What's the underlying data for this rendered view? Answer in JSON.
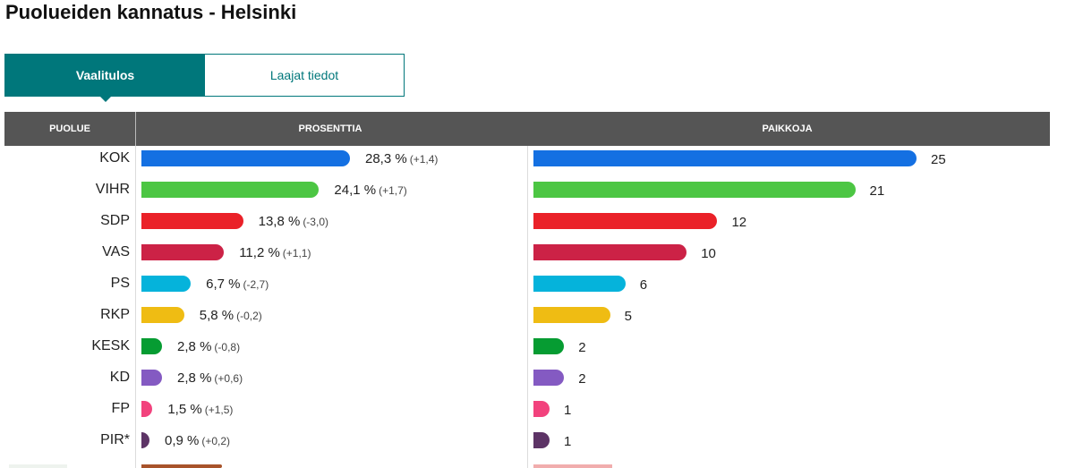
{
  "page_title": "Puolueiden kannatus - Helsinki",
  "tabs": {
    "active": "Vaalitulos",
    "inactive": "Laajat tiedot"
  },
  "table_header": {
    "party": "PUOLUE",
    "percent": "PROSENTTIA",
    "seats": "PAIKKOJA"
  },
  "chart_data": {
    "type": "bar",
    "orientation": "horizontal",
    "categories": [
      "KOK",
      "VIHR",
      "SDP",
      "VAS",
      "PS",
      "RKP",
      "KESK",
      "KD",
      "FP",
      "PIR*"
    ],
    "series": [
      {
        "name": "PROSENTTIA",
        "values": [
          28.3,
          24.1,
          13.8,
          11.2,
          6.7,
          5.8,
          2.8,
          2.8,
          1.5,
          0.9
        ],
        "value_labels": [
          "28,3 %",
          "24,1 %",
          "13,8 %",
          "11,2 %",
          "6,7 %",
          "5,8 %",
          "2,8 %",
          "2,8 %",
          "1,5 %",
          "0,9 %"
        ],
        "change_labels": [
          "(+1,4)",
          "(+1,7)",
          "(-3,0)",
          "(+1,1)",
          "(-2,7)",
          "(-0,2)",
          "(-0,8)",
          "(+0,6)",
          "(+1,5)",
          "(+0,2)"
        ],
        "changes": [
          1.4,
          1.7,
          -3.0,
          1.1,
          -2.7,
          -0.2,
          -0.8,
          0.6,
          1.5,
          0.2
        ]
      },
      {
        "name": "PAIKKOJA",
        "values": [
          25,
          21,
          12,
          10,
          6,
          5,
          2,
          2,
          1,
          1
        ],
        "value_labels": [
          "25",
          "21",
          "12",
          "10",
          "6",
          "5",
          "2",
          "2",
          "1",
          "1"
        ]
      }
    ],
    "colors": [
      "#1470e2",
      "#4cc643",
      "#ea2128",
      "#cc2246",
      "#05b3db",
      "#efbc13",
      "#069c32",
      "#845ac2",
      "#f2427d",
      "#5d3466"
    ],
    "legend": "none",
    "grid": false
  }
}
